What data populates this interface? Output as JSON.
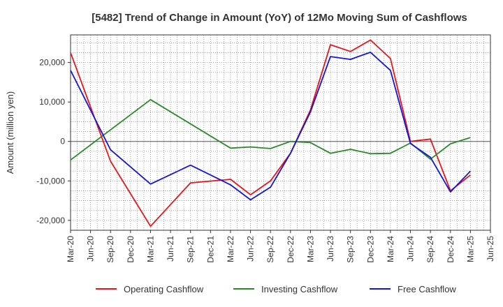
{
  "chart_data": {
    "type": "line",
    "title": "[5482]  Trend of Change in Amount (YoY) of 12Mo Moving Sum of Cashflows",
    "xlabel": "",
    "ylabel": "Amount (million yen)",
    "ylim": [
      -22500,
      27000
    ],
    "yticks": [
      -20000,
      -10000,
      0,
      10000,
      20000
    ],
    "ytick_labels": [
      "-20,000",
      "-10,000",
      "0",
      "10,000",
      "20,000"
    ],
    "categories": [
      "Mar-20",
      "Jun-20",
      "Sep-20",
      "Dec-20",
      "Mar-21",
      "Jun-21",
      "Sep-21",
      "Dec-21",
      "Mar-22",
      "Jun-22",
      "Sep-22",
      "Dec-22",
      "Mar-23",
      "Jun-23",
      "Sep-23",
      "Dec-23",
      "Mar-24",
      "Jun-24",
      "Sep-24",
      "Dec-24",
      "Mar-25",
      "Jun-25"
    ],
    "grid": true,
    "legend_position": "bottom",
    "series": [
      {
        "name": "Operating Cashflow",
        "color": "#e8141b",
        "values": [
          22500,
          null,
          -5000,
          null,
          -21500,
          null,
          -10500,
          null,
          -9600,
          -13500,
          -10000,
          -3000,
          8000,
          24500,
          22800,
          25700,
          21000,
          0,
          600,
          -12500,
          -8500,
          null
        ]
      },
      {
        "name": "Investing Cashflow",
        "color": "#2a8a2a",
        "values": [
          -4700,
          null,
          null,
          null,
          10600,
          null,
          null,
          null,
          -1700,
          -1400,
          -1800,
          0,
          -300,
          -3000,
          -2000,
          -3100,
          -3000,
          -400,
          -4500,
          -600,
          1000,
          null
        ]
      },
      {
        "name": "Free Cashflow",
        "color": "#1515d6",
        "values": [
          18000,
          null,
          -2100,
          null,
          -10800,
          null,
          -6000,
          null,
          -11000,
          -14800,
          -11600,
          -3000,
          7500,
          21500,
          20800,
          22600,
          18000,
          -500,
          -4000,
          -12800,
          -7500,
          null
        ]
      }
    ]
  }
}
